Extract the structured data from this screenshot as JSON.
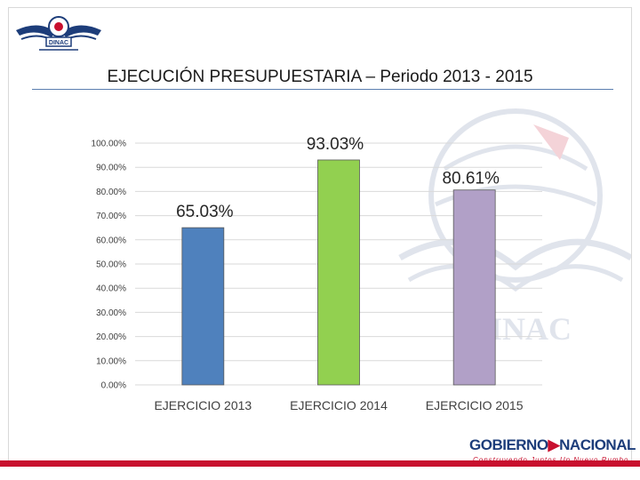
{
  "slide": {
    "title": "EJECUCIÓN PRESUPUESTARIA – Periodo 2013 - 2015",
    "logo_text": "DINAC",
    "watermark_text": "DINAC",
    "footer_brand_part1": "GOBIERNO",
    "footer_brand_part2": "NACIONAL",
    "footer_tagline": "Construyendo Juntos Un Nuevo Rumbo"
  },
  "colors": {
    "bar_2013": "#4f81bd",
    "bar_2014": "#92d050",
    "bar_2015": "#b1a0c7",
    "grid": "#d9d9d9",
    "accent_red": "#c8102e",
    "brand_blue": "#1d3d7a"
  },
  "chart_data": {
    "type": "bar",
    "title": "EJECUCIÓN PRESUPUESTARIA – Periodo 2013 - 2015",
    "categories": [
      "EJERCICIO 2013",
      "EJERCICIO 2014",
      "EJERCICIO 2015"
    ],
    "values": [
      65.03,
      93.03,
      80.61
    ],
    "data_labels": [
      "65.03%",
      "93.03%",
      "80.61%"
    ],
    "ylim": [
      0,
      100
    ],
    "yticks": [
      0,
      10,
      20,
      30,
      40,
      50,
      60,
      70,
      80,
      90,
      100
    ],
    "ytick_labels": [
      "0.00%",
      "10.00%",
      "20.00%",
      "30.00%",
      "40.00%",
      "50.00%",
      "60.00%",
      "70.00%",
      "80.00%",
      "90.00%",
      "100.00%"
    ],
    "xlabel": "",
    "ylabel": "",
    "grid": true,
    "legend": "none"
  }
}
